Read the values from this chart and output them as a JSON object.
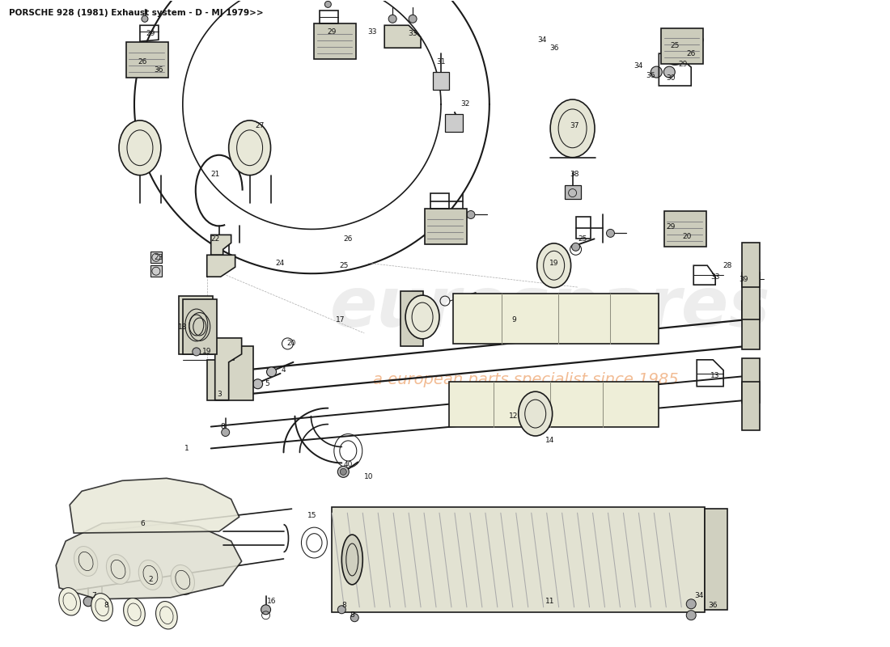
{
  "title": "PORSCHE 928 (1981) Exhaust system - D - MJ 1979>>",
  "bg": "#ffffff",
  "lc": "#1a1a1a",
  "fig_w": 11.0,
  "fig_h": 8.0,
  "dpi": 100,
  "wm_text": "eurospares",
  "wm_sub": "a european parts specialist since 1985",
  "wm_color": "#d8d8d8",
  "wm_sub_color": "#e06000",
  "title_fs": 7.5,
  "label_fs": 6.5,
  "xlim": [
    0,
    11
  ],
  "ylim": [
    0,
    8
  ],
  "labels": [
    [
      "1",
      2.3,
      2.45
    ],
    [
      "2",
      1.85,
      0.82
    ],
    [
      "3",
      2.7,
      3.12
    ],
    [
      "4",
      3.5,
      3.42
    ],
    [
      "5",
      3.3,
      3.25
    ],
    [
      "6",
      1.75,
      1.52
    ],
    [
      "7",
      1.15,
      0.62
    ],
    [
      "8",
      1.3,
      0.5
    ],
    [
      "8",
      2.75,
      2.72
    ],
    [
      "8",
      4.25,
      0.5
    ],
    [
      "9",
      6.35,
      4.05
    ],
    [
      "10",
      4.55,
      2.1
    ],
    [
      "11",
      6.8,
      0.55
    ],
    [
      "12",
      6.35,
      2.85
    ],
    [
      "13",
      8.85,
      3.35
    ],
    [
      "14",
      6.8,
      2.55
    ],
    [
      "15",
      3.85,
      1.62
    ],
    [
      "16",
      3.35,
      0.55
    ],
    [
      "17",
      4.2,
      4.05
    ],
    [
      "18",
      2.25,
      3.95
    ],
    [
      "19",
      2.55,
      3.65
    ],
    [
      "19",
      6.85,
      4.75
    ],
    [
      "20",
      3.6,
      3.75
    ],
    [
      "20",
      8.5,
      5.08
    ],
    [
      "21",
      2.65,
      5.85
    ],
    [
      "22",
      2.65,
      5.05
    ],
    [
      "23",
      1.95,
      4.82
    ],
    [
      "24",
      3.45,
      4.75
    ],
    [
      "25",
      4.25,
      4.72
    ],
    [
      "25",
      7.2,
      5.05
    ],
    [
      "25",
      8.35,
      7.45
    ],
    [
      "26",
      4.3,
      5.05
    ],
    [
      "26",
      8.55,
      7.35
    ],
    [
      "26",
      1.75,
      7.25
    ],
    [
      "27",
      3.2,
      6.45
    ],
    [
      "28",
      9.0,
      4.72
    ],
    [
      "29",
      1.85,
      7.6
    ],
    [
      "29",
      4.1,
      7.62
    ],
    [
      "29",
      8.3,
      5.2
    ],
    [
      "29",
      8.45,
      7.22
    ],
    [
      "30",
      8.3,
      7.05
    ],
    [
      "31",
      5.45,
      7.25
    ],
    [
      "32",
      5.75,
      6.72
    ],
    [
      "33",
      5.1,
      7.6
    ],
    [
      "33",
      4.6,
      7.62
    ],
    [
      "33",
      8.85,
      4.58
    ],
    [
      "34",
      6.7,
      7.52
    ],
    [
      "34",
      7.9,
      7.2
    ],
    [
      "34",
      8.65,
      0.62
    ],
    [
      "36",
      6.85,
      7.42
    ],
    [
      "36",
      8.05,
      7.08
    ],
    [
      "36",
      8.82,
      0.5
    ],
    [
      "36",
      1.95,
      7.15
    ],
    [
      "37",
      7.1,
      6.45
    ],
    [
      "38",
      7.1,
      5.85
    ],
    [
      "39",
      9.2,
      4.55
    ],
    [
      "40",
      4.3,
      2.25
    ],
    [
      "8",
      4.35,
      0.38
    ]
  ]
}
